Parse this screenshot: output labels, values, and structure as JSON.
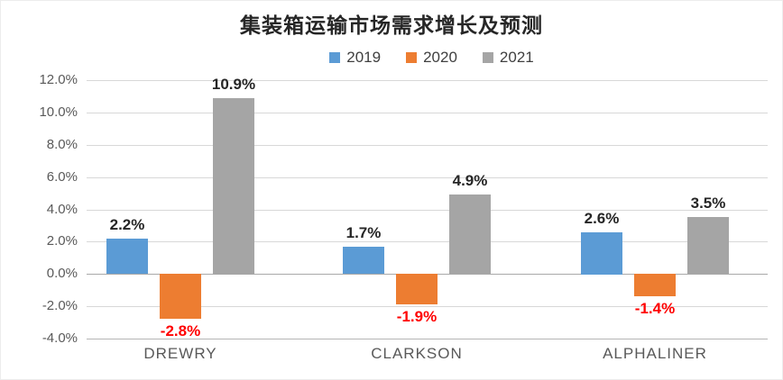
{
  "chart_data": {
    "type": "bar",
    "title": "集装箱运输市场需求增长及预测",
    "categories": [
      "DREWRY",
      "CLARKSON",
      "ALPHALINER"
    ],
    "series": [
      {
        "name": "2019",
        "color": "#5B9BD5",
        "values": [
          2.2,
          1.7,
          2.6
        ],
        "labels": [
          "2.2%",
          "1.7%",
          "2.6%"
        ]
      },
      {
        "name": "2020",
        "color": "#ED7D31",
        "values": [
          -2.8,
          -1.9,
          -1.4
        ],
        "labels": [
          "-2.8%",
          "-1.9%",
          "-1.4%"
        ]
      },
      {
        "name": "2021",
        "color": "#A5A5A5",
        "values": [
          10.9,
          4.9,
          3.5
        ],
        "labels": [
          "10.9%",
          "4.9%",
          "3.5%"
        ]
      }
    ],
    "ylim": [
      -4,
      12
    ],
    "ytick_step": 2,
    "ytick_labels": [
      "12.0%",
      "10.0%",
      "8.0%",
      "6.0%",
      "4.0%",
      "2.0%",
      "0.0%",
      "-2.0%",
      "-4.0%"
    ],
    "grid": true,
    "legend_position": "top",
    "legend_entries": [
      "2019",
      "2020",
      "2021"
    ],
    "xlabel": "",
    "ylabel": "",
    "positive_label_color": "#262626",
    "negative_label_color": "#FF0000"
  }
}
